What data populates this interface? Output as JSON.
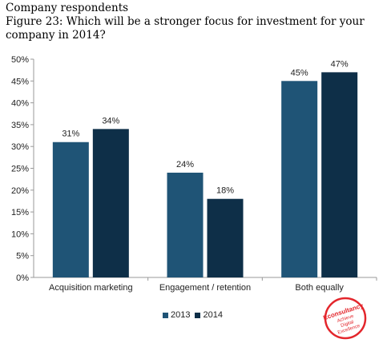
{
  "header": {
    "subtitle": "Company respondents",
    "title": "Figure 23: Which will be a stronger focus for investment for your company in 2014?"
  },
  "colors": {
    "s2013": "#1f5476",
    "s2014": "#0e2f48",
    "axis": "#999999",
    "brand": "#e3262c"
  },
  "legend": {
    "items": [
      "2013",
      "2014"
    ]
  },
  "logo": {
    "brand": "Econsultancy",
    "line1": "Achieve",
    "line2": "Digital",
    "line3": "Excellence"
  },
  "chart_data": {
    "type": "bar",
    "categories": [
      "Acquisition marketing",
      "Engagement / retention",
      "Both equally"
    ],
    "series": [
      {
        "name": "2013",
        "values": [
          31,
          24,
          45
        ],
        "labels": [
          "31%",
          "24%",
          "45%"
        ]
      },
      {
        "name": "2014",
        "values": [
          34,
          18,
          47
        ],
        "labels": [
          "34%",
          "18%",
          "47%"
        ]
      }
    ],
    "ylim": [
      0,
      50
    ],
    "yticks": [
      "0%",
      "5%",
      "10%",
      "15%",
      "20%",
      "25%",
      "30%",
      "35%",
      "40%",
      "45%",
      "50%"
    ],
    "grid": false,
    "legend_position": "bottom"
  }
}
